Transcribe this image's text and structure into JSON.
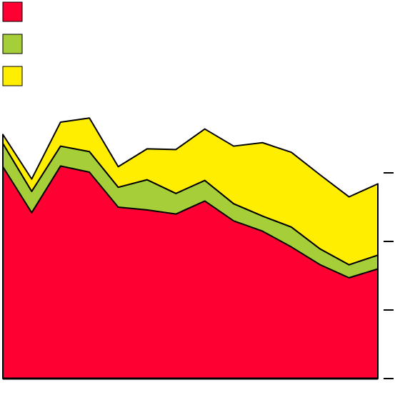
{
  "chart_data": {
    "type": "stacked_area",
    "x": [
      0,
      1,
      2,
      3,
      4,
      5,
      6,
      7,
      8,
      9,
      10,
      11,
      12,
      13
    ],
    "xlim": [
      0,
      13
    ],
    "series": [
      {
        "color": "#ff0033",
        "values": [
          309,
          242,
          310,
          301,
          250,
          246,
          240,
          259,
          230,
          215,
          192,
          166,
          147,
          160
        ]
      },
      {
        "color": "#a6ce39",
        "values": [
          34,
          31,
          29,
          30,
          29,
          44,
          30,
          30,
          25,
          22,
          29,
          23,
          19,
          20
        ]
      },
      {
        "color": "#ffee00",
        "values": [
          13,
          18,
          35,
          49,
          30,
          45,
          64,
          75,
          84,
          107,
          109,
          108,
          99,
          104
        ]
      }
    ],
    "ylim": [
      0,
      400
    ],
    "yticks": [
      0,
      100,
      200,
      300
    ],
    "y_axis_side": "right",
    "grid": false
  }
}
